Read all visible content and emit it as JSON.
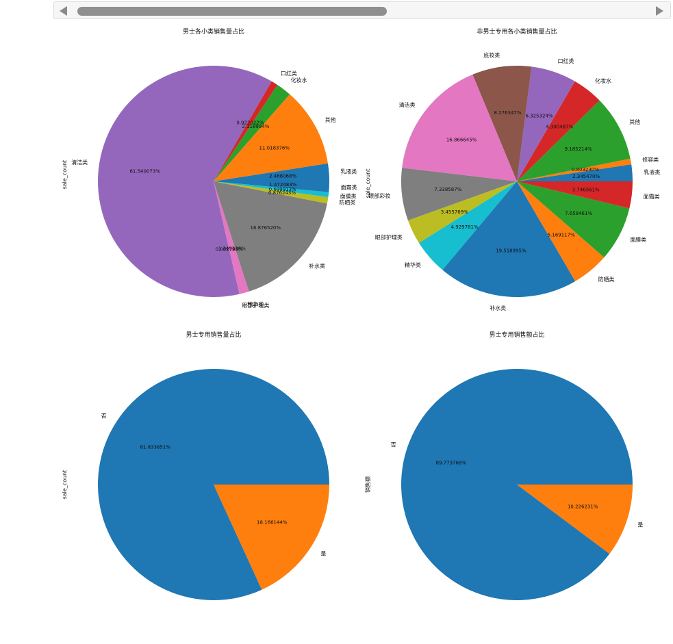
{
  "scrollbar": {
    "left_icon": "arrow-left-icon",
    "right_icon": "arrow-right-icon"
  },
  "chart_data": [
    {
      "type": "pie",
      "title": "男士各小类销售量占比",
      "ylabel": "sale_count",
      "start_angle": 0,
      "slices": [
        {
          "label": "乳液类",
          "pct_text": "2.468068%",
          "value": 2.468068,
          "color": "#1f77b4"
        },
        {
          "label": "其他",
          "pct_text": "11.018376%",
          "value": 11.018376,
          "color": "#ff7f0e"
        },
        {
          "label": "化妆水",
          "pct_text": "2.118994%",
          "value": 2.118994,
          "color": "#2ca02c"
        },
        {
          "label": "口红类",
          "pct_text": "0.922022%",
          "value": 0.922022,
          "color": "#d62728"
        },
        {
          "label": "清洁类",
          "pct_text": "61.540073%",
          "value": 61.540073,
          "color": "#9467bd"
        },
        {
          "label": "眼部护理类",
          "pct_text": "0.002798%",
          "value": 0.002798,
          "color": "#8c564b"
        },
        {
          "label": "精华类",
          "pct_text": "1.349338%",
          "value": 1.349338,
          "color": "#e377c2"
        },
        {
          "label": "补水类",
          "pct_text": "16.876520%",
          "value": 16.87652,
          "color": "#7f7f7f"
        },
        {
          "label": "防晒类",
          "pct_text": "0.876243%",
          "value": 0.876243,
          "color": "#bcbd22"
        },
        {
          "label": "面膜类",
          "pct_text": "0.699913%",
          "value": 0.699913,
          "color": "#17becf"
        },
        {
          "label": "面霜类",
          "pct_text": "1.472483%",
          "value": 1.472483,
          "color": "#1f77b4"
        }
      ]
    },
    {
      "type": "pie",
      "title": "非男士专用各小类销售量占比",
      "ylabel": "sale_count",
      "start_angle": 0,
      "slices": [
        {
          "label": "乳液类",
          "pct_text": "2.345470%",
          "value": 2.34547,
          "color": "#1f77b4"
        },
        {
          "label": "修容类",
          "pct_text": "0.803230%",
          "value": 0.80323,
          "color": "#ff7f0e"
        },
        {
          "label": "其他",
          "pct_text": "9.185214%",
          "value": 9.185214,
          "color": "#2ca02c"
        },
        {
          "label": "化妆水",
          "pct_text": "4.300487%",
          "value": 4.300487,
          "color": "#d62728"
        },
        {
          "label": "口红类",
          "pct_text": "6.325324%",
          "value": 6.325324,
          "color": "#9467bd"
        },
        {
          "label": "底妆类",
          "pct_text": "8.276347%",
          "value": 8.276347,
          "color": "#8c564b"
        },
        {
          "label": "清洁类",
          "pct_text": "16.866645%",
          "value": 16.866645,
          "color": "#e377c2"
        },
        {
          "label": "眼部彩妆",
          "pct_text": "7.338587%",
          "value": 7.338587,
          "color": "#7f7f7f"
        },
        {
          "label": "眼部护理类",
          "pct_text": "3.455769%",
          "value": 3.455769,
          "color": "#bcbd22"
        },
        {
          "label": "精华类",
          "pct_text": "4.929781%",
          "value": 4.929781,
          "color": "#17becf"
        },
        {
          "label": "补水类",
          "pct_text": "19.518995%",
          "value": 19.518995,
          "color": "#1f77b4"
        },
        {
          "label": "防晒类",
          "pct_text": "5.169117%",
          "value": 5.169117,
          "color": "#ff7f0e"
        },
        {
          "label": "面膜类",
          "pct_text": "7.658461%",
          "value": 7.658461,
          "color": "#2ca02c"
        },
        {
          "label": "面霜类",
          "pct_text": "3.746561%",
          "value": 3.746561,
          "color": "#d62728"
        }
      ]
    },
    {
      "type": "pie",
      "title": "男士专用销售量占比",
      "ylabel": "sale_count",
      "start_angle": 0,
      "slices": [
        {
          "label": "否",
          "pct_text": "81.833851%",
          "value": 81.833851,
          "color": "#1f77b4"
        },
        {
          "label": "是",
          "pct_text": "18.166144%",
          "value": 18.166144,
          "color": "#ff7f0e"
        }
      ]
    },
    {
      "type": "pie",
      "title": "男士专用销售额占比",
      "ylabel": "销售额",
      "start_angle": 0,
      "slices": [
        {
          "label": "否",
          "pct_text": "89.773768%",
          "value": 89.773768,
          "color": "#1f77b4"
        },
        {
          "label": "是",
          "pct_text": "10.226231%",
          "value": 10.226231,
          "color": "#ff7f0e"
        }
      ]
    }
  ]
}
